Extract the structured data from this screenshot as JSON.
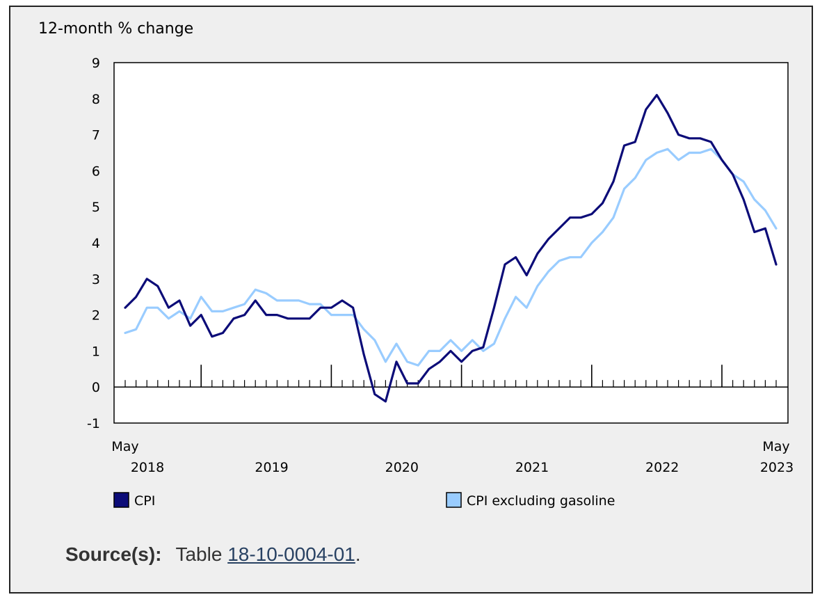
{
  "chart_data": {
    "type": "line",
    "unit_label": "12-month % change",
    "ylim": [
      -1,
      9
    ],
    "yticks": [
      -1,
      0,
      1,
      2,
      3,
      4,
      5,
      6,
      7,
      8,
      9
    ],
    "x_month_labels": [
      {
        "month_index": 0,
        "label": "May"
      },
      {
        "month_index": 60,
        "label": "May"
      }
    ],
    "x_year_labels": [
      {
        "month_index": 0,
        "label": "2018"
      },
      {
        "month_index": 12,
        "label": "2019"
      },
      {
        "month_index": 24,
        "label": "2020"
      },
      {
        "month_index": 36,
        "label": "2021"
      },
      {
        "month_index": 48,
        "label": "2022"
      },
      {
        "month_index": 60,
        "label": "2023"
      }
    ],
    "x_start": "2018-05",
    "x_end": "2023-05",
    "grid": false,
    "legend_position": "bottom",
    "series": [
      {
        "name": "CPI",
        "color": "#0c0c78",
        "values": [
          2.2,
          2.5,
          3.0,
          2.8,
          2.2,
          2.4,
          1.7,
          2.0,
          1.4,
          1.5,
          1.9,
          2.0,
          2.4,
          2.0,
          2.0,
          1.9,
          1.9,
          1.9,
          2.2,
          2.2,
          2.4,
          2.2,
          0.9,
          -0.2,
          -0.4,
          0.7,
          0.1,
          0.1,
          0.5,
          0.7,
          1.0,
          0.7,
          1.0,
          1.1,
          2.2,
          3.4,
          3.6,
          3.1,
          3.7,
          4.1,
          4.4,
          4.7,
          4.7,
          4.8,
          5.1,
          5.7,
          6.7,
          6.8,
          7.7,
          8.1,
          7.6,
          7.0,
          6.9,
          6.9,
          6.8,
          6.3,
          5.9,
          5.2,
          4.3,
          4.4,
          3.4
        ]
      },
      {
        "name": "CPI excluding gasoline",
        "color": "#99ccff",
        "values": [
          1.5,
          1.6,
          2.2,
          2.2,
          1.9,
          2.1,
          1.9,
          2.5,
          2.1,
          2.1,
          2.2,
          2.3,
          2.7,
          2.6,
          2.4,
          2.4,
          2.4,
          2.3,
          2.3,
          2.0,
          2.0,
          2.0,
          1.6,
          1.3,
          0.7,
          1.2,
          0.7,
          0.6,
          1.0,
          1.0,
          1.3,
          1.0,
          1.3,
          1.0,
          1.2,
          1.9,
          2.5,
          2.2,
          2.8,
          3.2,
          3.5,
          3.6,
          3.6,
          4.0,
          4.3,
          4.7,
          5.5,
          5.8,
          6.3,
          6.5,
          6.6,
          6.3,
          6.5,
          6.5,
          6.6,
          6.3,
          5.9,
          5.7,
          5.2,
          4.9,
          4.4
        ]
      }
    ]
  },
  "source": {
    "label": "Source(s):",
    "prefix": "Table",
    "link_text": "18-10-0004-01",
    "suffix": "."
  }
}
